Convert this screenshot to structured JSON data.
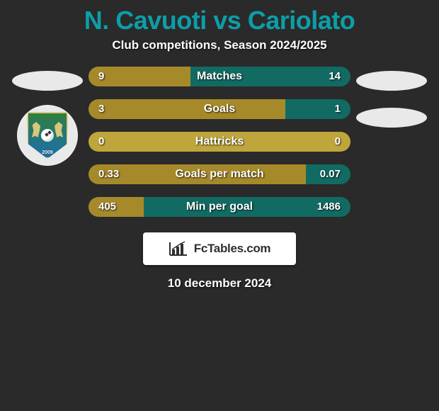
{
  "title": "N. Cavuoti vs Cariolato",
  "subtitle": "Club competitions, Season 2024/2025",
  "date": "10 december 2024",
  "logo_text": "FcTables.com",
  "badge_year": "2009",
  "colors": {
    "title": "#0d9ea8",
    "background": "#2a2a2a",
    "ellipse": "#e9e9e9",
    "text_shadow": "rgba(0,0,0,0.85)",
    "bar_left": "#a68a2a",
    "bar_left_alt": "#bfa63c",
    "bar_right": "#116b63"
  },
  "bars": [
    {
      "category": "Matches",
      "left_value": "9",
      "right_value": "14",
      "left_pct": 39,
      "left_color": "#a68a2a",
      "right_color": "#116b63"
    },
    {
      "category": "Goals",
      "left_value": "3",
      "right_value": "1",
      "left_pct": 75,
      "left_color": "#a68a2a",
      "right_color": "#116b63"
    },
    {
      "category": "Hattricks",
      "left_value": "0",
      "right_value": "0",
      "left_pct": 100,
      "left_color": "#bfa63c",
      "right_color": "#bfa63c"
    },
    {
      "category": "Goals per match",
      "left_value": "0.33",
      "right_value": "0.07",
      "left_pct": 83,
      "left_color": "#a68a2a",
      "right_color": "#116b63"
    },
    {
      "category": "Min per goal",
      "left_value": "405",
      "right_value": "1486",
      "left_pct": 21,
      "left_color": "#a68a2a",
      "right_color": "#116b63"
    }
  ]
}
